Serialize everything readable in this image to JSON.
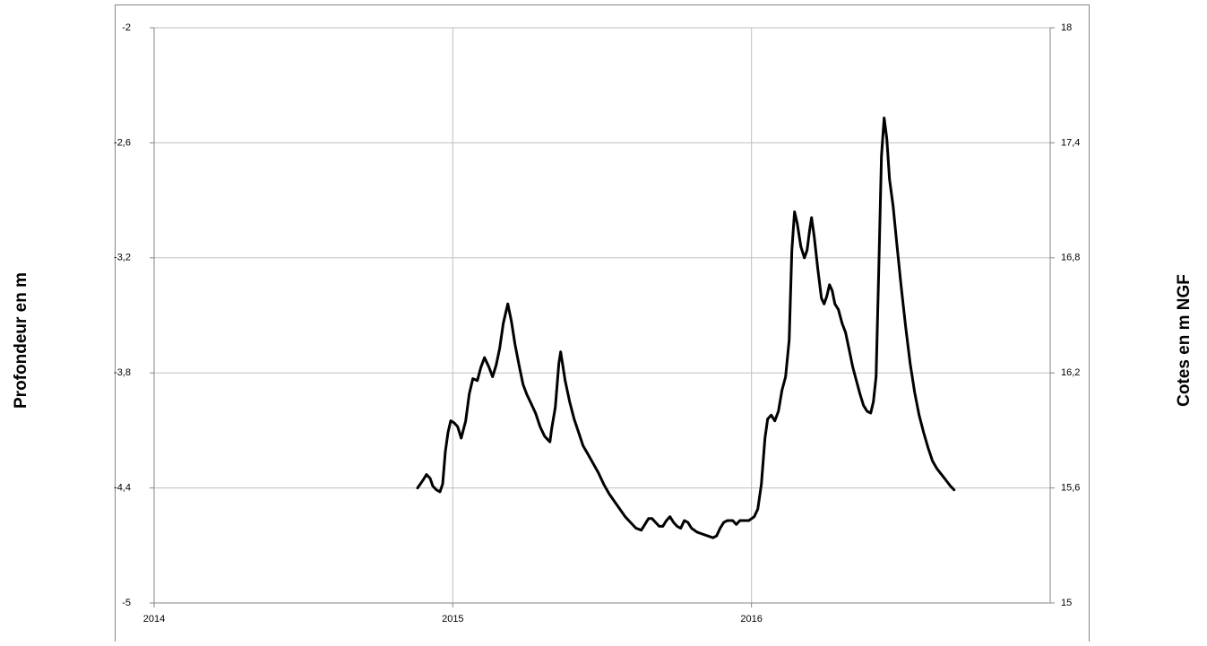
{
  "chart_data": {
    "type": "line",
    "y_label": "Profondeur en m",
    "y2_label": "Cotes en m NGF",
    "xlim": [
      2014,
      2017
    ],
    "xticks": [
      2014,
      2015,
      2016
    ],
    "ylim": [
      -5,
      -2
    ],
    "yticks": [
      {
        "value": -5,
        "label": "-5"
      },
      {
        "value": -4.4,
        "label": "-4,4"
      },
      {
        "value": -3.8,
        "label": "-3,8"
      },
      {
        "value": -3.2,
        "label": "-3,2"
      },
      {
        "value": -2.6,
        "label": "-2,6"
      },
      {
        "value": -2,
        "label": "-2"
      }
    ],
    "y2lim": [
      15,
      18
    ],
    "y2ticks": [
      {
        "value": 15,
        "label": "15"
      },
      {
        "value": 15.6,
        "label": "15,6"
      },
      {
        "value": 16.2,
        "label": "16,2"
      },
      {
        "value": 16.8,
        "label": "16,8"
      },
      {
        "value": 17.4,
        "label": "17,4"
      },
      {
        "value": 18,
        "label": "18"
      }
    ],
    "grid": true,
    "x": [
      2014.882,
      2014.9,
      2014.912,
      2014.924,
      2014.933,
      2014.945,
      2014.957,
      2014.966,
      2014.975,
      2014.984,
      2014.993,
      2015.004,
      2015.016,
      2015.028,
      2015.043,
      2015.055,
      2015.067,
      2015.082,
      2015.094,
      2015.106,
      2015.121,
      2015.133,
      2015.145,
      2015.157,
      2015.169,
      2015.184,
      2015.196,
      2015.208,
      2015.223,
      2015.235,
      2015.247,
      2015.262,
      2015.277,
      2015.292,
      2015.307,
      2015.325,
      2015.331,
      2015.343,
      2015.355,
      2015.361,
      2015.367,
      2015.376,
      2015.391,
      2015.406,
      2015.421,
      2015.436,
      2015.451,
      2015.469,
      2015.487,
      2015.505,
      2015.523,
      2015.541,
      2015.559,
      2015.577,
      2015.595,
      2015.613,
      2015.631,
      2015.643,
      2015.655,
      2015.667,
      2015.679,
      2015.691,
      2015.703,
      2015.715,
      2015.727,
      2015.739,
      2015.751,
      2015.763,
      2015.775,
      2015.787,
      2015.799,
      2015.817,
      2015.835,
      2015.853,
      2015.871,
      2015.883,
      2015.895,
      2015.907,
      2015.919,
      2015.937,
      2015.949,
      2015.961,
      2015.973,
      2015.991,
      2016.009,
      2016.021,
      2016.033,
      2016.045,
      2016.054,
      2016.066,
      2016.078,
      2016.09,
      2016.102,
      2016.114,
      2016.126,
      2016.135,
      2016.144,
      2016.153,
      2016.165,
      2016.177,
      2016.186,
      2016.195,
      2016.201,
      2016.21,
      2016.222,
      2016.234,
      2016.243,
      2016.252,
      2016.261,
      2016.27,
      2016.279,
      2016.291,
      2016.303,
      2016.315,
      2016.327,
      2016.339,
      2016.351,
      2016.363,
      2016.375,
      2016.387,
      2016.399,
      2016.408,
      2016.417,
      2016.426,
      2016.435,
      2016.444,
      2016.453,
      2016.462,
      2016.474,
      2016.486,
      2016.501,
      2016.516,
      2016.531,
      2016.546,
      2016.561,
      2016.576,
      2016.591,
      2016.606,
      2016.621,
      2016.636,
      2016.651,
      2016.666,
      2016.678
    ],
    "series": [
      {
        "color": "#000000",
        "values": [
          -4.4,
          -4.36,
          -4.33,
          -4.35,
          -4.39,
          -4.41,
          -4.42,
          -4.38,
          -4.21,
          -4.11,
          -4.05,
          -4.06,
          -4.08,
          -4.14,
          -4.05,
          -3.91,
          -3.83,
          -3.84,
          -3.77,
          -3.72,
          -3.77,
          -3.82,
          -3.76,
          -3.67,
          -3.54,
          -3.44,
          -3.53,
          -3.65,
          -3.77,
          -3.86,
          -3.91,
          -3.96,
          -4.01,
          -4.08,
          -4.13,
          -4.16,
          -4.09,
          -3.98,
          -3.75,
          -3.69,
          -3.75,
          -3.84,
          -3.95,
          -4.04,
          -4.11,
          -4.18,
          -4.22,
          -4.27,
          -4.32,
          -4.38,
          -4.43,
          -4.47,
          -4.51,
          -4.55,
          -4.58,
          -4.61,
          -4.62,
          -4.59,
          -4.56,
          -4.56,
          -4.58,
          -4.6,
          -4.6,
          -4.57,
          -4.55,
          -4.58,
          -4.6,
          -4.61,
          -4.57,
          -4.58,
          -4.61,
          -4.63,
          -4.64,
          -4.65,
          -4.66,
          -4.65,
          -4.61,
          -4.58,
          -4.57,
          -4.57,
          -4.59,
          -4.57,
          -4.57,
          -4.57,
          -4.55,
          -4.51,
          -4.38,
          -4.14,
          -4.04,
          -4.02,
          -4.05,
          -4.0,
          -3.89,
          -3.82,
          -3.63,
          -3.16,
          -2.96,
          -3.02,
          -3.14,
          -3.2,
          -3.16,
          -3.05,
          -2.99,
          -3.09,
          -3.26,
          -3.41,
          -3.44,
          -3.4,
          -3.34,
          -3.37,
          -3.44,
          -3.47,
          -3.54,
          -3.59,
          -3.68,
          -3.77,
          -3.84,
          -3.91,
          -3.97,
          -4.0,
          -4.01,
          -3.95,
          -3.82,
          -3.26,
          -2.67,
          -2.47,
          -2.58,
          -2.79,
          -2.93,
          -3.12,
          -3.35,
          -3.56,
          -3.75,
          -3.9,
          -4.02,
          -4.11,
          -4.19,
          -4.26,
          -4.3,
          -4.33,
          -4.36,
          -4.39,
          -4.41
        ]
      }
    ]
  }
}
